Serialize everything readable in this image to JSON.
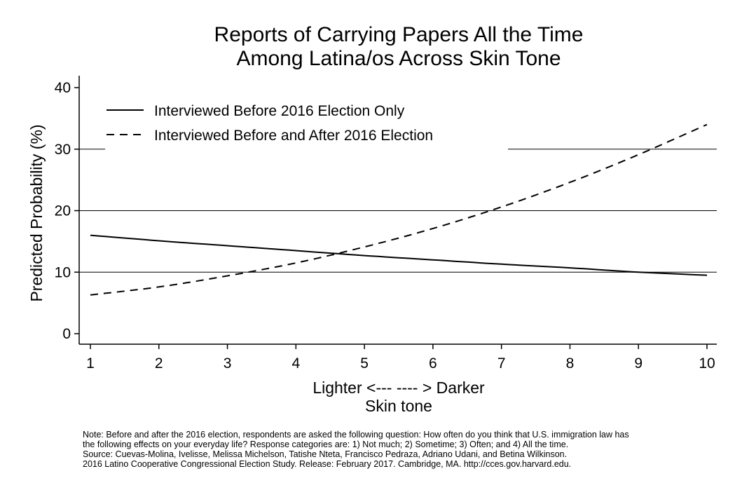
{
  "chart_data": {
    "type": "line",
    "title": [
      "Reports of Carrying Papers All the Time",
      "Among Latina/os Across Skin Tone"
    ],
    "xlabel": [
      "Lighter <--- ---- > Darker",
      "Skin tone"
    ],
    "ylabel": "Predicted Probability (%)",
    "x": [
      1,
      2,
      3,
      4,
      5,
      6,
      7,
      8,
      9,
      10
    ],
    "xticks": [
      "1",
      "2",
      "3",
      "4",
      "5",
      "6",
      "7",
      "8",
      "9",
      "10"
    ],
    "yticks": [
      "0",
      "10",
      "20",
      "30",
      "40"
    ],
    "ylim": [
      0,
      40
    ],
    "xlim": [
      1,
      10
    ],
    "grid": "horizontal",
    "legend_position": "top-left",
    "series": [
      {
        "name": "Interviewed Before 2016 Election Only",
        "style": "solid",
        "values": [
          16.0,
          15.1,
          14.3,
          13.5,
          12.7,
          12.0,
          11.3,
          10.7,
          10.0,
          9.5
        ]
      },
      {
        "name": "Interviewed Before and After 2016 Election",
        "style": "dashed",
        "values": [
          6.3,
          7.6,
          9.4,
          11.5,
          14.1,
          17.1,
          20.6,
          24.6,
          29.1,
          34.0
        ]
      }
    ]
  },
  "note": [
    "Note: Before and after the 2016 election, respondents are asked the following question: How often do you think that U.S. immigration law has",
    "the following effects on your everyday life? Response categories are: 1) Not much; 2) Sometime; 3) Often; and 4) All the time.",
    "Source: Cuevas-Molina, Ivelisse, Melissa Michelson, Tatishe Nteta, Francisco Pedraza, Adriano Udani, and Betina Wilkinson.",
    "2016 Latino Cooperative Congressional Election Study. Release: February 2017. Cambridge, MA. http://cces.gov.harvard.edu."
  ],
  "colors": {
    "line": "#000000",
    "grid": "#000000",
    "background": "#ffffff"
  }
}
